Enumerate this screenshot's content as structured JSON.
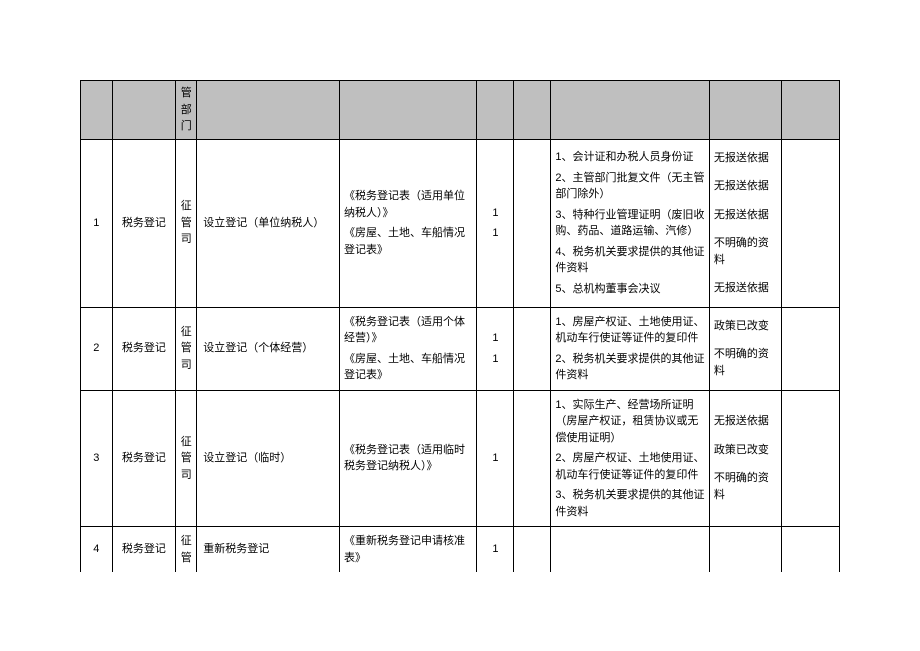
{
  "header": {
    "dept_col": "管部门"
  },
  "rows": [
    {
      "idx": "1",
      "cat": "税务登记",
      "dept": "征管司",
      "name": "设立登记（单位纳税人）",
      "docs": [
        {
          "t": "《税务登记表（适用单位纳税人）》",
          "n": "1"
        },
        {
          "t": "《房屋、土地、车船情况登记表》",
          "n": "1"
        }
      ],
      "mats": [
        "1、会计证和办税人员身份证",
        "2、主管部门批复文件（无主管部门除外）",
        "3、特种行业管理证明（废旧收购、药品、道路运输、汽修）",
        "4、税务机关要求提供的其他证件资料",
        "5、总机构董事会决议"
      ],
      "res": [
        "无报送依据",
        "无报送依据",
        "无报送依据",
        "不明确的资料",
        "无报送依据"
      ]
    },
    {
      "idx": "2",
      "cat": "税务登记",
      "dept": "征管司",
      "name": "设立登记（个体经营）",
      "docs": [
        {
          "t": "《税务登记表（适用个体经营）》",
          "n": "1"
        },
        {
          "t": "《房屋、土地、车船情况登记表》",
          "n": "1"
        }
      ],
      "mats": [
        "1、房屋产权证、土地使用证、机动车行使证等证件的复印件",
        "2、税务机关要求提供的其他证件资料"
      ],
      "res": [
        "政策已改变",
        "不明确的资料"
      ]
    },
    {
      "idx": "3",
      "cat": "税务登记",
      "dept": "征管司",
      "name": "设立登记（临时）",
      "docs": [
        {
          "t": "《税务登记表（适用临时税务登记纳税人）》",
          "n": "1"
        }
      ],
      "mats": [
        "1、实际生产、经营场所证明（房屋产权证，租赁协议或无偿使用证明）",
        "2、房屋产权证、土地使用证、机动车行使证等证件的复印件",
        "3、税务机关要求提供的其他证件资料"
      ],
      "res": [
        "无报送依据",
        "政策已改变",
        "不明确的资料"
      ]
    },
    {
      "idx": "4",
      "cat": "税务登记",
      "dept": "征管",
      "name": "重新税务登记",
      "docs": [
        {
          "t": "《重新税务登记申请核准表》",
          "n": "1"
        }
      ],
      "mats": [],
      "res": []
    }
  ]
}
